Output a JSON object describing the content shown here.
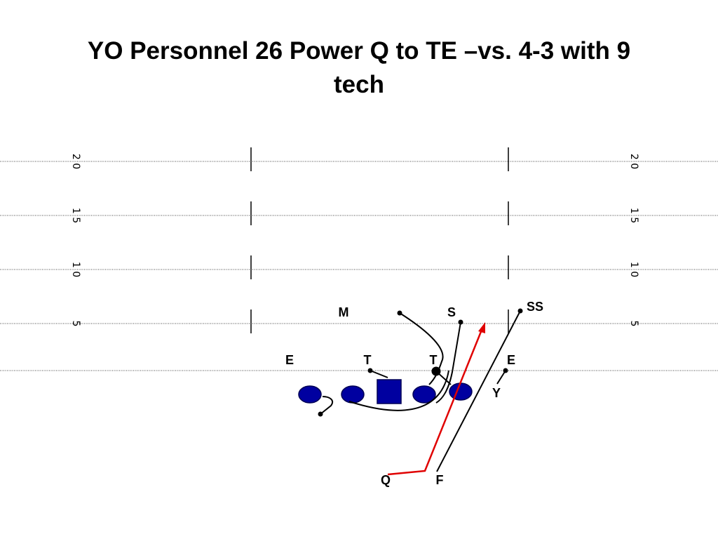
{
  "title": "YO Personnel 26 Power Q to TE –vs.  4-3 with 9",
  "title_cont": "tech",
  "yard_labels": {
    "left": [
      "2 0",
      "1 5",
      "1 0",
      "5"
    ],
    "right": [
      "2 0",
      "1 5",
      "1 0",
      "5"
    ]
  },
  "defense": [
    "M",
    "S",
    "SS",
    "E",
    "T",
    "T",
    "E"
  ],
  "offense": [
    "Y",
    "Q",
    "F"
  ]
}
